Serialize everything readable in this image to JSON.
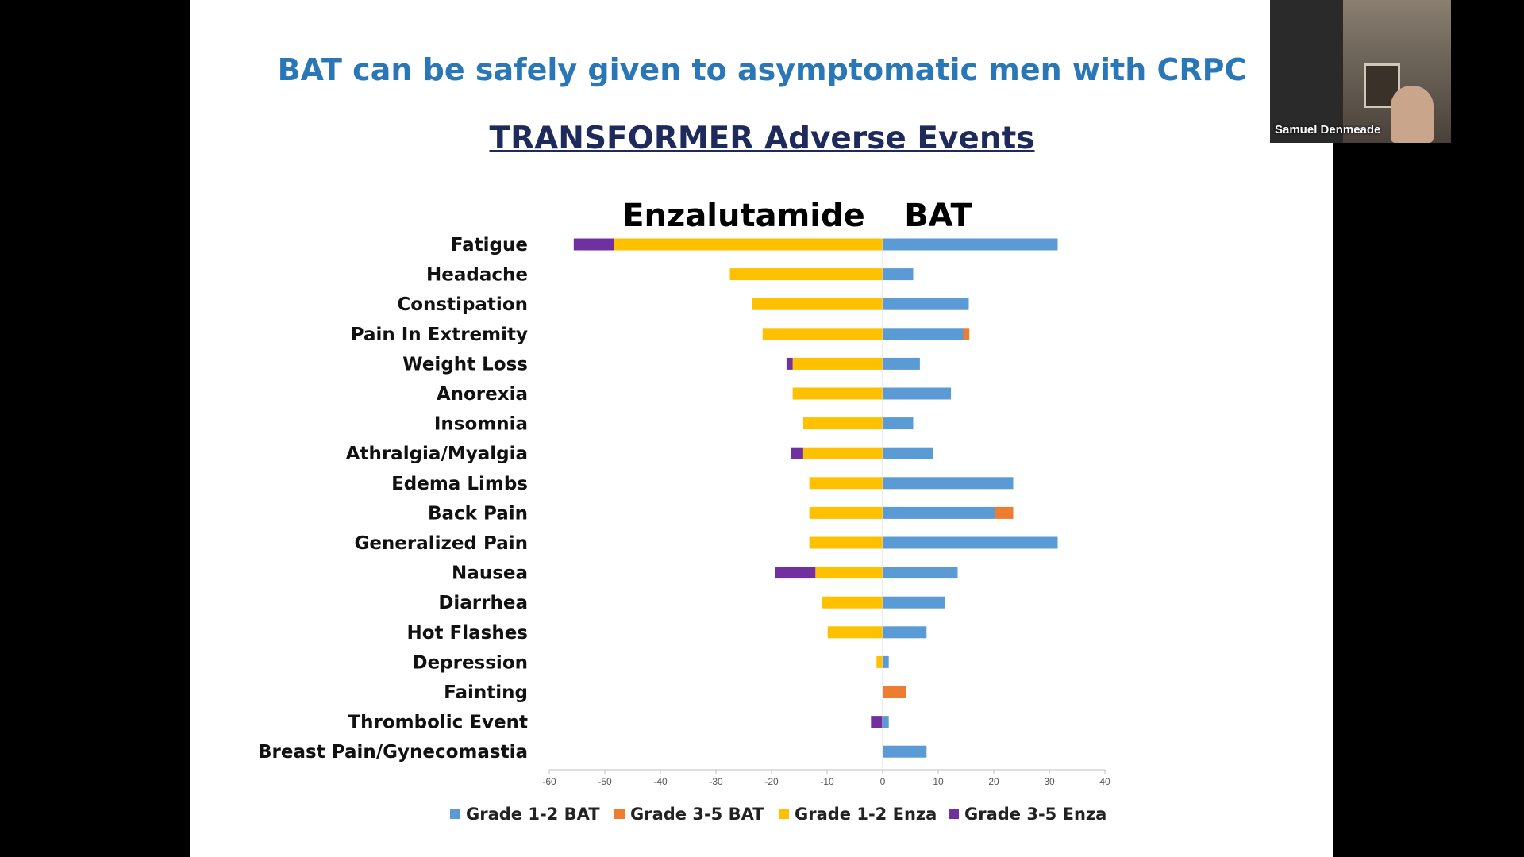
{
  "slide": {
    "title": "BAT can be safely given to asymptomatic men with CRPC",
    "chart_title": "TRANSFORMER Adverse Events"
  },
  "video": {
    "participant_name": "Samuel Denmeade"
  },
  "colors": {
    "grade12_bat": "#5b9bd5",
    "grade35_bat": "#ed7d31",
    "grade12_enza": "#ffc000",
    "grade35_enza": "#7030a0",
    "title": "#2a77b8",
    "chart_title": "#1f2a5c"
  },
  "chart_data": {
    "type": "bar",
    "orientation": "horizontal",
    "stacked": true,
    "left_label": "Enzalutamide",
    "right_label": "BAT",
    "categories": [
      "Fatigue",
      "Headache",
      "Constipation",
      "Pain In Extremity",
      "Weight Loss",
      "Anorexia",
      "Insomnia",
      "Athralgia/Myalgia",
      "Edema Limbs",
      "Back Pain",
      "Generalized Pain",
      "Nausea",
      "Diarrhea",
      "Hot Flashes",
      "Depression",
      "Fainting",
      "Thrombolic Event",
      "Breast Pain/Gynecomastia"
    ],
    "series": [
      {
        "name": "Grade 1-2 BAT",
        "color_key": "grade12_bat",
        "values": [
          31.5,
          5.5,
          15.5,
          14.5,
          6.7,
          12.3,
          5.5,
          9,
          23.5,
          20.2,
          31.5,
          13.5,
          11.2,
          7.9,
          1.1,
          0,
          1.1,
          7.9
        ]
      },
      {
        "name": "Grade 3-5 BAT",
        "color_key": "grade35_bat",
        "values": [
          0,
          0,
          0,
          1.1,
          0,
          0,
          0,
          0,
          0,
          3.3,
          0,
          0,
          0,
          0,
          0,
          4.2,
          0,
          0
        ]
      },
      {
        "name": "Grade 1-2 Enza",
        "color_key": "grade12_enza",
        "values": [
          -48.4,
          -27.5,
          -23.5,
          -21.6,
          -16.2,
          -16.2,
          -14.3,
          -14.3,
          -13.2,
          -13.2,
          -13.2,
          -12.1,
          -11,
          -9.9,
          -1.1,
          0,
          0,
          0
        ]
      },
      {
        "name": "Grade 3-5 Enza",
        "color_key": "grade35_enza",
        "values": [
          -7.2,
          0,
          0,
          0,
          -1.1,
          0,
          0,
          -2.2,
          0,
          0,
          0,
          -7.2,
          0,
          0,
          0,
          0,
          -2.1,
          0
        ]
      }
    ],
    "xlim": [
      -60,
      40
    ],
    "xticks": [
      "-60",
      "-50",
      "-40",
      "-30",
      "-20",
      "-10",
      "0",
      "10",
      "20",
      "30",
      "40"
    ],
    "xlabel": "",
    "ylabel": "",
    "grid": false,
    "legend": [
      "Grade 1-2 BAT",
      "Grade 3-5 BAT",
      "Grade 1-2 Enza",
      "Grade 3-5 Enza"
    ],
    "legend_position": "bottom"
  }
}
